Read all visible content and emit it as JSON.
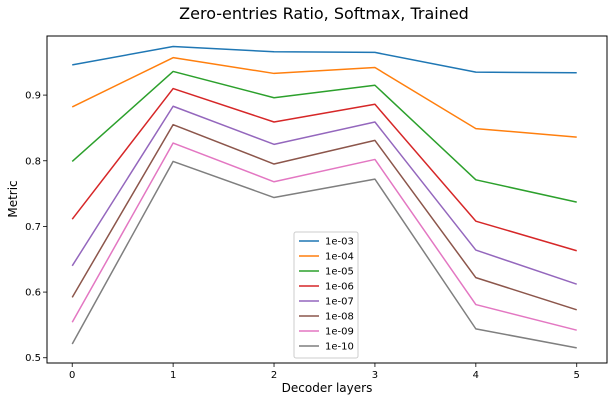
{
  "chart_data": {
    "type": "line",
    "title": "Zero-entries Ratio, Softmax, Trained",
    "xlabel": "Decoder layers",
    "ylabel": "Metric",
    "x": [
      0,
      1,
      2,
      3,
      4,
      5
    ],
    "xticks": [
      "0",
      "1",
      "2",
      "3",
      "4",
      "5"
    ],
    "yticks": [
      "0.5",
      "0.6",
      "0.7",
      "0.8",
      "0.9"
    ],
    "xlim": [
      -0.25,
      5.3
    ],
    "ylim": [
      0.492,
      0.99
    ],
    "grid": false,
    "legend_position": "lower-center",
    "series": [
      {
        "name": "1e-03",
        "color": "#1f77b4",
        "values": [
          0.946,
          0.974,
          0.966,
          0.965,
          0.935,
          0.934
        ]
      },
      {
        "name": "1e-04",
        "color": "#ff7f0e",
        "values": [
          0.882,
          0.957,
          0.933,
          0.942,
          0.849,
          0.836
        ]
      },
      {
        "name": "1e-05",
        "color": "#2ca02c",
        "values": [
          0.799,
          0.936,
          0.896,
          0.915,
          0.771,
          0.737
        ]
      },
      {
        "name": "1e-06",
        "color": "#d62728",
        "values": [
          0.711,
          0.91,
          0.859,
          0.886,
          0.708,
          0.663
        ]
      },
      {
        "name": "1e-07",
        "color": "#9467bd",
        "values": [
          0.64,
          0.883,
          0.825,
          0.859,
          0.664,
          0.612
        ]
      },
      {
        "name": "1e-08",
        "color": "#8c564b",
        "values": [
          0.592,
          0.855,
          0.795,
          0.831,
          0.622,
          0.573
        ]
      },
      {
        "name": "1e-09",
        "color": "#e377c2",
        "values": [
          0.554,
          0.827,
          0.768,
          0.802,
          0.581,
          0.542
        ]
      },
      {
        "name": "1e-10",
        "color": "#7f7f7f",
        "values": [
          0.521,
          0.799,
          0.744,
          0.772,
          0.544,
          0.515
        ]
      }
    ]
  }
}
